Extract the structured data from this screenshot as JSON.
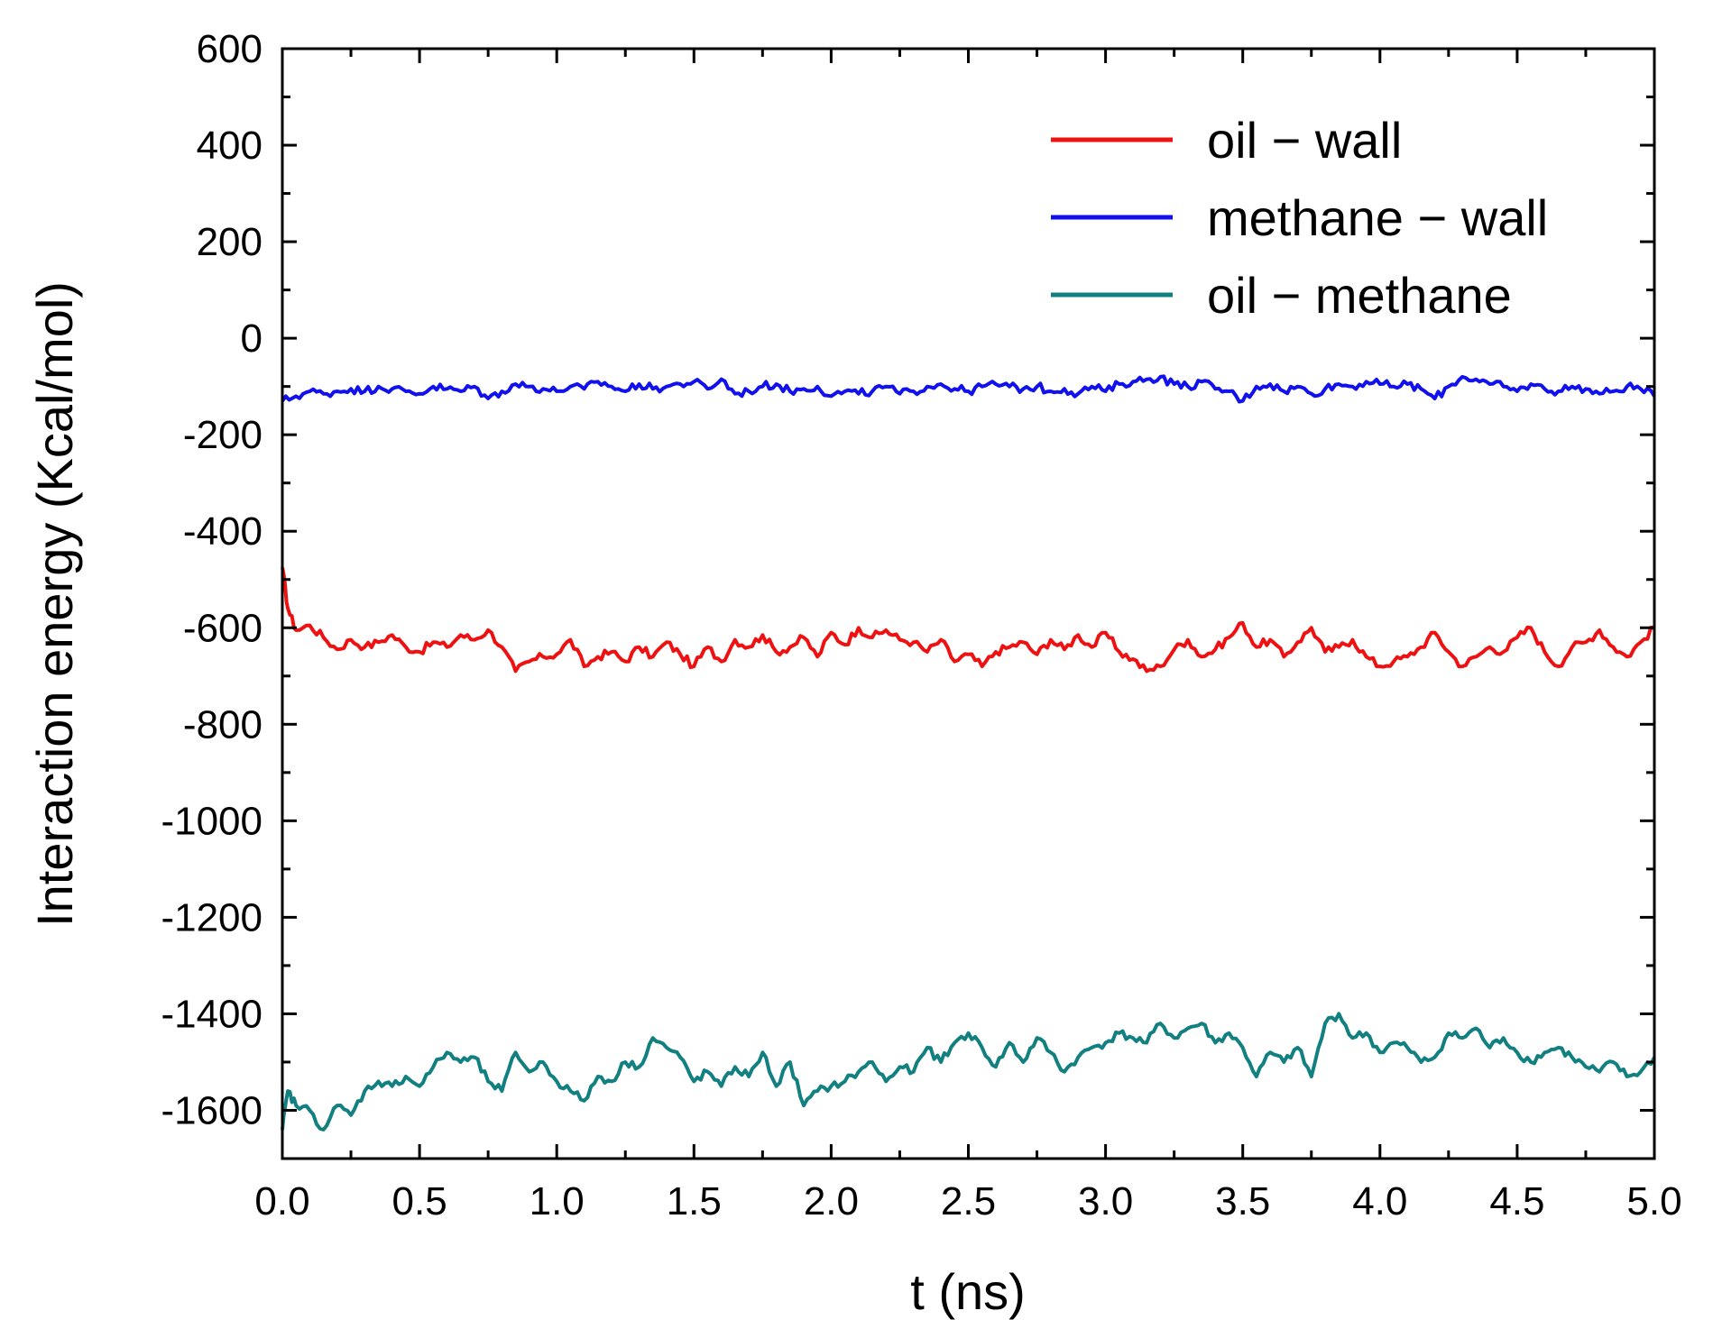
{
  "chart_data": {
    "type": "line",
    "title": "",
    "xlabel": "t (ns)",
    "ylabel": "Interaction energy (Kcal/mol)",
    "xlim": [
      0,
      5
    ],
    "ylim": [
      -1700,
      600
    ],
    "xticks": [
      0.0,
      0.5,
      1.0,
      1.5,
      2.0,
      2.5,
      3.0,
      3.5,
      4.0,
      4.5,
      5.0
    ],
    "xtick_labels": [
      "0.0",
      "0.5",
      "1.0",
      "1.5",
      "2.0",
      "2.5",
      "3.0",
      "3.5",
      "4.0",
      "4.5",
      "5.0"
    ],
    "yticks": [
      600,
      400,
      200,
      0,
      -200,
      -400,
      -600,
      -800,
      -1000,
      -1200,
      -1400,
      -1600
    ],
    "ytick_labels": [
      "600",
      "400",
      "200",
      "0",
      "-200",
      "-400",
      "-600",
      "-800",
      "-1000",
      "-1200",
      "-1400",
      "-1600"
    ],
    "grid": false,
    "legend_position": "top-right",
    "series": [
      {
        "name": "oil − wall",
        "color": "#ee1111",
        "x": [
          0.0,
          0.02,
          0.05,
          0.1,
          0.15,
          0.2,
          0.25,
          0.3,
          0.35,
          0.4,
          0.45,
          0.5,
          0.55,
          0.6,
          0.65,
          0.7,
          0.75,
          0.8,
          0.85,
          0.9,
          0.95,
          1.0,
          1.05,
          1.1,
          1.15,
          1.2,
          1.25,
          1.3,
          1.35,
          1.4,
          1.45,
          1.5,
          1.55,
          1.6,
          1.65,
          1.7,
          1.75,
          1.8,
          1.85,
          1.9,
          1.95,
          2.0,
          2.05,
          2.1,
          2.15,
          2.2,
          2.25,
          2.3,
          2.35,
          2.4,
          2.45,
          2.5,
          2.55,
          2.6,
          2.65,
          2.7,
          2.75,
          2.8,
          2.85,
          2.9,
          2.95,
          3.0,
          3.05,
          3.1,
          3.15,
          3.2,
          3.25,
          3.3,
          3.35,
          3.4,
          3.45,
          3.5,
          3.55,
          3.6,
          3.65,
          3.7,
          3.75,
          3.8,
          3.85,
          3.9,
          3.95,
          4.0,
          4.05,
          4.1,
          4.15,
          4.2,
          4.25,
          4.3,
          4.35,
          4.4,
          4.45,
          4.5,
          4.55,
          4.6,
          4.65,
          4.7,
          4.75,
          4.8,
          4.85,
          4.9,
          4.95,
          5.0
        ],
        "values": [
          -475,
          -560,
          -605,
          -595,
          -620,
          -645,
          -625,
          -640,
          -630,
          -615,
          -640,
          -650,
          -630,
          -640,
          -615,
          -625,
          -605,
          -640,
          -690,
          -670,
          -660,
          -655,
          -625,
          -680,
          -660,
          -650,
          -670,
          -640,
          -660,
          -630,
          -655,
          -680,
          -640,
          -670,
          -625,
          -640,
          -615,
          -650,
          -640,
          -620,
          -660,
          -610,
          -635,
          -600,
          -620,
          -605,
          -625,
          -630,
          -650,
          -625,
          -670,
          -655,
          -680,
          -650,
          -640,
          -630,
          -655,
          -625,
          -645,
          -615,
          -640,
          -610,
          -650,
          -665,
          -690,
          -680,
          -645,
          -625,
          -660,
          -645,
          -620,
          -590,
          -640,
          -625,
          -660,
          -630,
          -600,
          -650,
          -640,
          -625,
          -660,
          -680,
          -670,
          -660,
          -640,
          -610,
          -650,
          -680,
          -660,
          -640,
          -650,
          -620,
          -600,
          -650,
          -680,
          -640,
          -630,
          -605,
          -640,
          -660,
          -630,
          -600
        ]
      },
      {
        "name": "methane − wall",
        "color": "#1111ee",
        "x": [
          0.0,
          0.05,
          0.1,
          0.15,
          0.2,
          0.25,
          0.3,
          0.35,
          0.4,
          0.45,
          0.5,
          0.55,
          0.6,
          0.65,
          0.7,
          0.75,
          0.8,
          0.85,
          0.9,
          0.95,
          1.0,
          1.05,
          1.1,
          1.15,
          1.2,
          1.25,
          1.3,
          1.35,
          1.4,
          1.45,
          1.5,
          1.55,
          1.6,
          1.65,
          1.7,
          1.75,
          1.8,
          1.85,
          1.9,
          1.95,
          2.0,
          2.05,
          2.1,
          2.15,
          2.2,
          2.25,
          2.3,
          2.35,
          2.4,
          2.45,
          2.5,
          2.55,
          2.6,
          2.65,
          2.7,
          2.75,
          2.8,
          2.85,
          2.9,
          2.95,
          3.0,
          3.05,
          3.1,
          3.15,
          3.2,
          3.25,
          3.3,
          3.35,
          3.4,
          3.45,
          3.5,
          3.55,
          3.6,
          3.65,
          3.7,
          3.75,
          3.8,
          3.85,
          3.9,
          3.95,
          4.0,
          4.05,
          4.1,
          4.15,
          4.2,
          4.25,
          4.3,
          4.35,
          4.4,
          4.45,
          4.5,
          4.55,
          4.6,
          4.65,
          4.7,
          4.75,
          4.8,
          4.85,
          4.9,
          4.95,
          5.0
        ],
        "values": [
          -130,
          -120,
          -110,
          -115,
          -110,
          -105,
          -110,
          -100,
          -105,
          -110,
          -115,
          -100,
          -105,
          -110,
          -100,
          -125,
          -110,
          -95,
          -100,
          -105,
          -110,
          -100,
          -105,
          -90,
          -100,
          -110,
          -95,
          -105,
          -100,
          -95,
          -90,
          -105,
          -85,
          -115,
          -110,
          -100,
          -95,
          -110,
          -105,
          -100,
          -120,
          -110,
          -115,
          -110,
          -100,
          -115,
          -110,
          -100,
          -95,
          -105,
          -110,
          -100,
          -95,
          -100,
          -105,
          -100,
          -110,
          -105,
          -115,
          -100,
          -110,
          -95,
          -90,
          -85,
          -80,
          -95,
          -100,
          -90,
          -105,
          -110,
          -130,
          -100,
          -95,
          -110,
          -100,
          -115,
          -105,
          -95,
          -100,
          -90,
          -95,
          -100,
          -95,
          -105,
          -125,
          -100,
          -80,
          -85,
          -95,
          -100,
          -110,
          -95,
          -105,
          -110,
          -100,
          -105,
          -115,
          -110,
          -100,
          -105,
          -120
        ]
      },
      {
        "name": "oil − methane",
        "color": "#128080",
        "x": [
          0.0,
          0.02,
          0.05,
          0.1,
          0.15,
          0.2,
          0.25,
          0.3,
          0.35,
          0.4,
          0.45,
          0.5,
          0.55,
          0.6,
          0.65,
          0.7,
          0.75,
          0.8,
          0.85,
          0.9,
          0.95,
          1.0,
          1.05,
          1.1,
          1.15,
          1.2,
          1.25,
          1.3,
          1.35,
          1.4,
          1.45,
          1.5,
          1.55,
          1.6,
          1.65,
          1.7,
          1.75,
          1.8,
          1.85,
          1.9,
          1.95,
          2.0,
          2.05,
          2.1,
          2.15,
          2.2,
          2.25,
          2.3,
          2.35,
          2.4,
          2.45,
          2.5,
          2.55,
          2.6,
          2.65,
          2.7,
          2.75,
          2.8,
          2.85,
          2.9,
          2.95,
          3.0,
          3.05,
          3.1,
          3.15,
          3.2,
          3.25,
          3.3,
          3.35,
          3.4,
          3.45,
          3.5,
          3.55,
          3.6,
          3.65,
          3.7,
          3.75,
          3.8,
          3.85,
          3.9,
          3.95,
          4.0,
          4.05,
          4.1,
          4.15,
          4.2,
          4.25,
          4.3,
          4.35,
          4.4,
          4.45,
          4.5,
          4.55,
          4.6,
          4.65,
          4.7,
          4.75,
          4.8,
          4.85,
          4.9,
          4.95,
          5.0
        ],
        "values": [
          -1640,
          -1560,
          -1590,
          -1600,
          -1640,
          -1590,
          -1610,
          -1560,
          -1540,
          -1550,
          -1530,
          -1550,
          -1510,
          -1480,
          -1500,
          -1490,
          -1540,
          -1560,
          -1480,
          -1520,
          -1500,
          -1540,
          -1560,
          -1580,
          -1530,
          -1540,
          -1500,
          -1510,
          -1450,
          -1470,
          -1490,
          -1540,
          -1520,
          -1550,
          -1510,
          -1530,
          -1480,
          -1550,
          -1500,
          -1590,
          -1560,
          -1550,
          -1540,
          -1520,
          -1500,
          -1540,
          -1510,
          -1520,
          -1470,
          -1500,
          -1460,
          -1440,
          -1470,
          -1510,
          -1460,
          -1500,
          -1450,
          -1480,
          -1520,
          -1490,
          -1470,
          -1460,
          -1440,
          -1450,
          -1460,
          -1420,
          -1450,
          -1430,
          -1420,
          -1460,
          -1440,
          -1470,
          -1530,
          -1480,
          -1500,
          -1470,
          -1530,
          -1420,
          -1400,
          -1450,
          -1440,
          -1480,
          -1460,
          -1470,
          -1500,
          -1490,
          -1440,
          -1450,
          -1430,
          -1470,
          -1450,
          -1480,
          -1500,
          -1480,
          -1470,
          -1490,
          -1510,
          -1520,
          -1500,
          -1530,
          -1520,
          -1490
        ]
      }
    ]
  }
}
